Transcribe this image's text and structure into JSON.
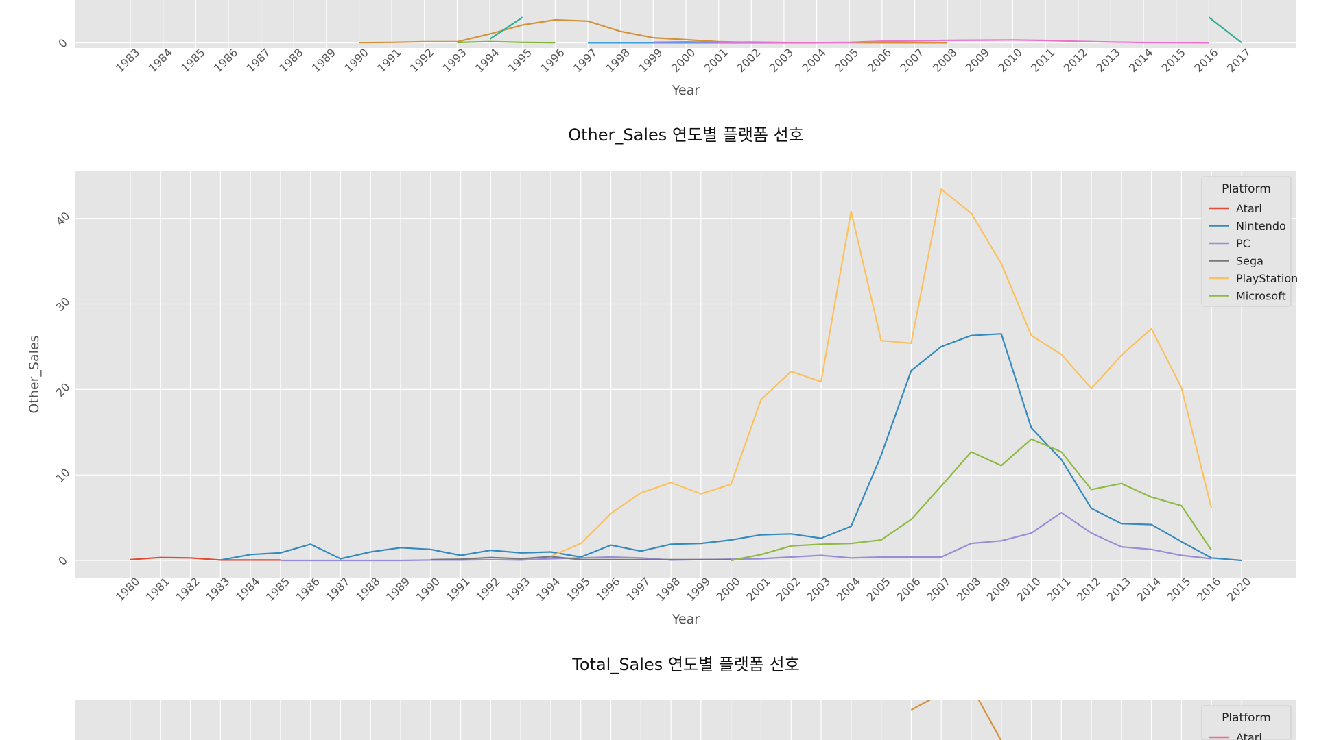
{
  "chart_data": [
    {
      "type": "line",
      "title": "",
      "xlabel": "Year",
      "ylabel": "",
      "x_ticks": [
        1983,
        1984,
        1985,
        1986,
        1987,
        1988,
        1989,
        1990,
        1991,
        1992,
        1993,
        1994,
        1995,
        1996,
        1997,
        1998,
        1999,
        2000,
        2001,
        2002,
        2003,
        2004,
        2005,
        2006,
        2007,
        2008,
        2009,
        2010,
        2011,
        2012,
        2013,
        2014,
        2015,
        2016,
        2017
      ],
      "y_ticks": [
        0
      ],
      "ylim": [
        -4,
        55
      ],
      "grid": true,
      "legend": false,
      "series": [
        {
          "color": "#d4913a",
          "x": [
            1990,
            1991,
            1992,
            1993,
            1994,
            1995,
            1996,
            1997,
            1998,
            1999,
            2000,
            2001,
            2002,
            2003,
            2004,
            2005,
            2006,
            2007,
            2008
          ],
          "y": [
            0.2,
            0.4,
            0.9,
            0.9,
            7,
            14,
            18,
            17,
            9,
            4,
            2.5,
            0.9,
            0.4,
            0.2,
            0.2,
            0.2,
            0.1,
            0.05,
            0.05
          ]
        },
        {
          "color": "#7fb33a",
          "x": [
            1993,
            1994,
            1995,
            1996
          ],
          "y": [
            0.3,
            1.0,
            0.4,
            0.2
          ]
        },
        {
          "color": "#2fae95",
          "x": [
            1994,
            1995
          ],
          "y": [
            3,
            20
          ]
        },
        {
          "color": "#2fae95",
          "x": [
            2016,
            2017
          ],
          "y": [
            20,
            0.2
          ]
        },
        {
          "color": "#3fa0e0",
          "x": [
            1997,
            1998,
            1999,
            2000,
            2001,
            2002,
            2003,
            2004
          ],
          "y": [
            0.1,
            0.1,
            0.1,
            0.1,
            0.1,
            0.1,
            0.1,
            0.1
          ]
        },
        {
          "color": "#b07cf0",
          "x": [
            1999,
            2000,
            2001,
            2002,
            2003,
            2004
          ],
          "y": [
            0.5,
            0.8,
            0.4,
            0.3,
            0.2,
            0.2
          ]
        },
        {
          "color": "#ee6fce",
          "x": [
            2001,
            2002,
            2003,
            2004,
            2005,
            2006,
            2007,
            2008,
            2009,
            2010,
            2011,
            2012,
            2013,
            2014,
            2015,
            2016
          ],
          "y": [
            0.4,
            0.6,
            0.3,
            0.2,
            0.4,
            1.3,
            1.6,
            2.0,
            2.1,
            2.3,
            1.9,
            1.2,
            0.6,
            0.3,
            0.2,
            0.1
          ]
        }
      ]
    },
    {
      "type": "line",
      "title": "Other_Sales 연도별 플랫폼 선호",
      "xlabel": "Year",
      "ylabel": "Other_Sales",
      "x_ticks": [
        1980,
        1981,
        1982,
        1983,
        1984,
        1985,
        1986,
        1987,
        1988,
        1989,
        1990,
        1991,
        1992,
        1993,
        1994,
        1995,
        1996,
        1997,
        1998,
        1999,
        2000,
        2001,
        2002,
        2003,
        2004,
        2005,
        2006,
        2007,
        2008,
        2009,
        2010,
        2011,
        2012,
        2013,
        2014,
        2015,
        2016,
        2020
      ],
      "y_ticks": [
        0,
        10,
        20,
        30,
        40
      ],
      "ylim": [
        -2,
        45.5
      ],
      "grid": true,
      "legend": true,
      "legend_title": "Platform",
      "legend_position": "top-right",
      "series": [
        {
          "name": "Atari",
          "color": "#e24a33",
          "x": [
            1980,
            1981,
            1982,
            1983,
            1984,
            1985
          ],
          "y": [
            0.1,
            0.35,
            0.3,
            0.05,
            0.05,
            0.05
          ]
        },
        {
          "name": "Nintendo",
          "color": "#348abd",
          "x": [
            1983,
            1984,
            1985,
            1986,
            1987,
            1988,
            1989,
            1990,
            1991,
            1992,
            1993,
            1994,
            1995,
            1996,
            1997,
            1998,
            1999,
            2000,
            2001,
            2002,
            2003,
            2004,
            2005,
            2006,
            2007,
            2008,
            2009,
            2010,
            2011,
            2012,
            2013,
            2014,
            2015,
            2016,
            2020
          ],
          "y": [
            0.05,
            0.7,
            0.9,
            1.9,
            0.2,
            1.0,
            1.5,
            1.3,
            0.6,
            1.2,
            0.9,
            1.0,
            0.4,
            1.8,
            1.1,
            1.9,
            2.0,
            2.4,
            3.0,
            3.1,
            2.6,
            4.0,
            12.3,
            22.2,
            25.0,
            26.3,
            26.5,
            15.5,
            11.8,
            6.1,
            4.3,
            4.2,
            2.2,
            0.3,
            0.0
          ]
        },
        {
          "name": "PC",
          "color": "#988ed5",
          "x": [
            1985,
            1986,
            1987,
            1988,
            1989,
            1990,
            1991,
            1992,
            1993,
            1994,
            1995,
            1996,
            1997,
            1998,
            1999,
            2000,
            2001,
            2002,
            2003,
            2004,
            2005,
            2006,
            2007,
            2008,
            2009,
            2010,
            2011,
            2012,
            2013,
            2014,
            2015,
            2016
          ],
          "y": [
            0.0,
            0.0,
            0.0,
            0.0,
            0.0,
            0.05,
            0.05,
            0.1,
            0.05,
            0.2,
            0.3,
            0.4,
            0.3,
            0.05,
            0.1,
            0.15,
            0.2,
            0.4,
            0.6,
            0.3,
            0.4,
            0.4,
            0.4,
            2.0,
            2.3,
            3.2,
            5.6,
            3.2,
            1.6,
            1.3,
            0.6,
            0.2
          ]
        },
        {
          "name": "Sega",
          "color": "#777777",
          "x": [
            1990,
            1991,
            1992,
            1993,
            1994,
            1995,
            1996,
            1997,
            1998,
            1999,
            2000
          ],
          "y": [
            0.1,
            0.15,
            0.35,
            0.2,
            0.45,
            0.1,
            0.1,
            0.1,
            0.1,
            0.1,
            0.1
          ]
        },
        {
          "name": "PlayStation",
          "color": "#fbc15e",
          "x": [
            1994,
            1995,
            1996,
            1997,
            1998,
            1999,
            2000,
            2001,
            2002,
            2003,
            2004,
            2005,
            2006,
            2007,
            2008,
            2009,
            2010,
            2011,
            2012,
            2013,
            2014,
            2015,
            2016
          ],
          "y": [
            0.5,
            2.0,
            5.5,
            7.9,
            9.1,
            7.8,
            8.9,
            18.8,
            22.1,
            20.9,
            40.8,
            25.7,
            25.4,
            43.4,
            40.6,
            34.7,
            26.3,
            24.1,
            20.1,
            24.0,
            27.1,
            20.2,
            6.1
          ]
        },
        {
          "name": "Microsoft",
          "color": "#8eba42",
          "x": [
            2000,
            2001,
            2002,
            2003,
            2004,
            2005,
            2006,
            2007,
            2008,
            2009,
            2010,
            2011,
            2012,
            2013,
            2014,
            2015,
            2016
          ],
          "y": [
            0.0,
            0.7,
            1.7,
            1.9,
            2.0,
            2.4,
            4.8,
            8.7,
            12.7,
            11.1,
            14.2,
            12.7,
            8.3,
            9.0,
            7.4,
            6.4,
            1.2
          ]
        }
      ]
    },
    {
      "type": "line",
      "title": "Total_Sales 연도별 플랫폼 선호",
      "xlabel": "",
      "ylabel": "",
      "legend": true,
      "legend_title": "Platform",
      "legend_position": "top-right",
      "visible_legend_entries": [
        {
          "name": "Atari",
          "color": "#ee6f8a"
        }
      ],
      "series": [
        {
          "color": "#d4913a",
          "x": [
            2006,
            2007,
            2008,
            2009
          ],
          "y": [
            0.5,
            1.8,
            2.4,
            -2.0
          ]
        }
      ]
    }
  ]
}
